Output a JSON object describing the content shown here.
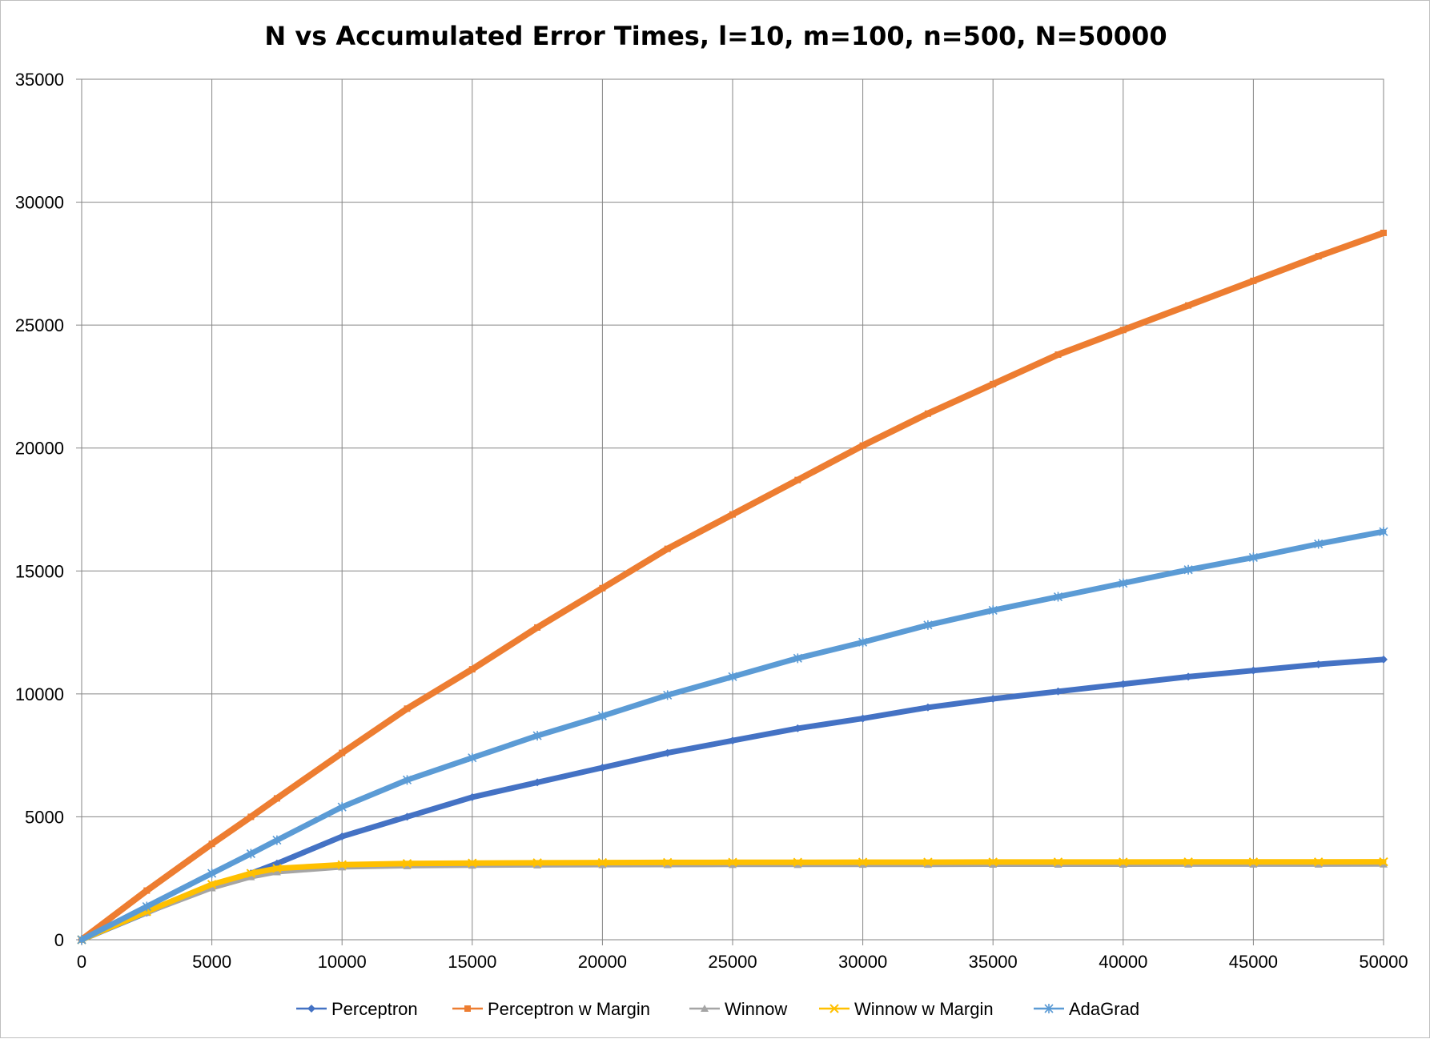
{
  "chart_data": {
    "type": "line",
    "title": "N vs Accumulated Error Times, l=10, m=100, n=500, N=50000",
    "xlabel": "",
    "ylabel": "",
    "xlim": [
      0,
      50000
    ],
    "ylim": [
      0,
      35000
    ],
    "xticks": [
      "0",
      "5000",
      "10000",
      "15000",
      "20000",
      "25000",
      "30000",
      "35000",
      "40000",
      "45000",
      "50000"
    ],
    "yticks": [
      "0",
      "5000",
      "10000",
      "15000",
      "20000",
      "25000",
      "30000",
      "35000"
    ],
    "grid": true,
    "legend_position": "bottom",
    "x": [
      0,
      2500,
      5000,
      6500,
      7500,
      10000,
      12500,
      15000,
      17500,
      20000,
      22500,
      25000,
      27500,
      30000,
      32500,
      35000,
      37500,
      40000,
      42500,
      45000,
      47500,
      50000
    ],
    "series": [
      {
        "name": "Perceptron",
        "color": "#4472c4",
        "marker": "diamond",
        "values": [
          0,
          1100,
          2200,
          2700,
          3100,
          4200,
          5000,
          5800,
          6400,
          7000,
          7600,
          8100,
          8600,
          9000,
          9450,
          9800,
          10100,
          10400,
          10700,
          10950,
          11200,
          11400
        ]
      },
      {
        "name": "Perceptron w Margin",
        "color": "#ed7d31",
        "marker": "square",
        "values": [
          0,
          2000,
          3900,
          5000,
          5750,
          7600,
          9400,
          11000,
          12700,
          14300,
          15900,
          17300,
          18700,
          20100,
          21400,
          22600,
          23800,
          24800,
          25800,
          26800,
          27800,
          28750
        ]
      },
      {
        "name": "Winnow",
        "color": "#a5a5a5",
        "marker": "triangle",
        "values": [
          0,
          1100,
          2100,
          2550,
          2750,
          2950,
          3000,
          3020,
          3030,
          3040,
          3045,
          3050,
          3050,
          3055,
          3055,
          3060,
          3060,
          3060,
          3065,
          3065,
          3065,
          3070
        ]
      },
      {
        "name": "Winnow w Margin",
        "color": "#ffc000",
        "marker": "x",
        "values": [
          0,
          1150,
          2250,
          2700,
          2900,
          3050,
          3100,
          3120,
          3130,
          3140,
          3145,
          3150,
          3150,
          3155,
          3155,
          3160,
          3160,
          3160,
          3165,
          3165,
          3165,
          3170
        ]
      },
      {
        "name": "AdaGrad",
        "color": "#5b9bd5",
        "marker": "star",
        "values": [
          0,
          1350,
          2700,
          3500,
          4050,
          5400,
          6500,
          7400,
          8300,
          9100,
          9950,
          10700,
          11450,
          12100,
          12800,
          13400,
          13950,
          14500,
          15050,
          15550,
          16100,
          16600
        ]
      }
    ]
  }
}
